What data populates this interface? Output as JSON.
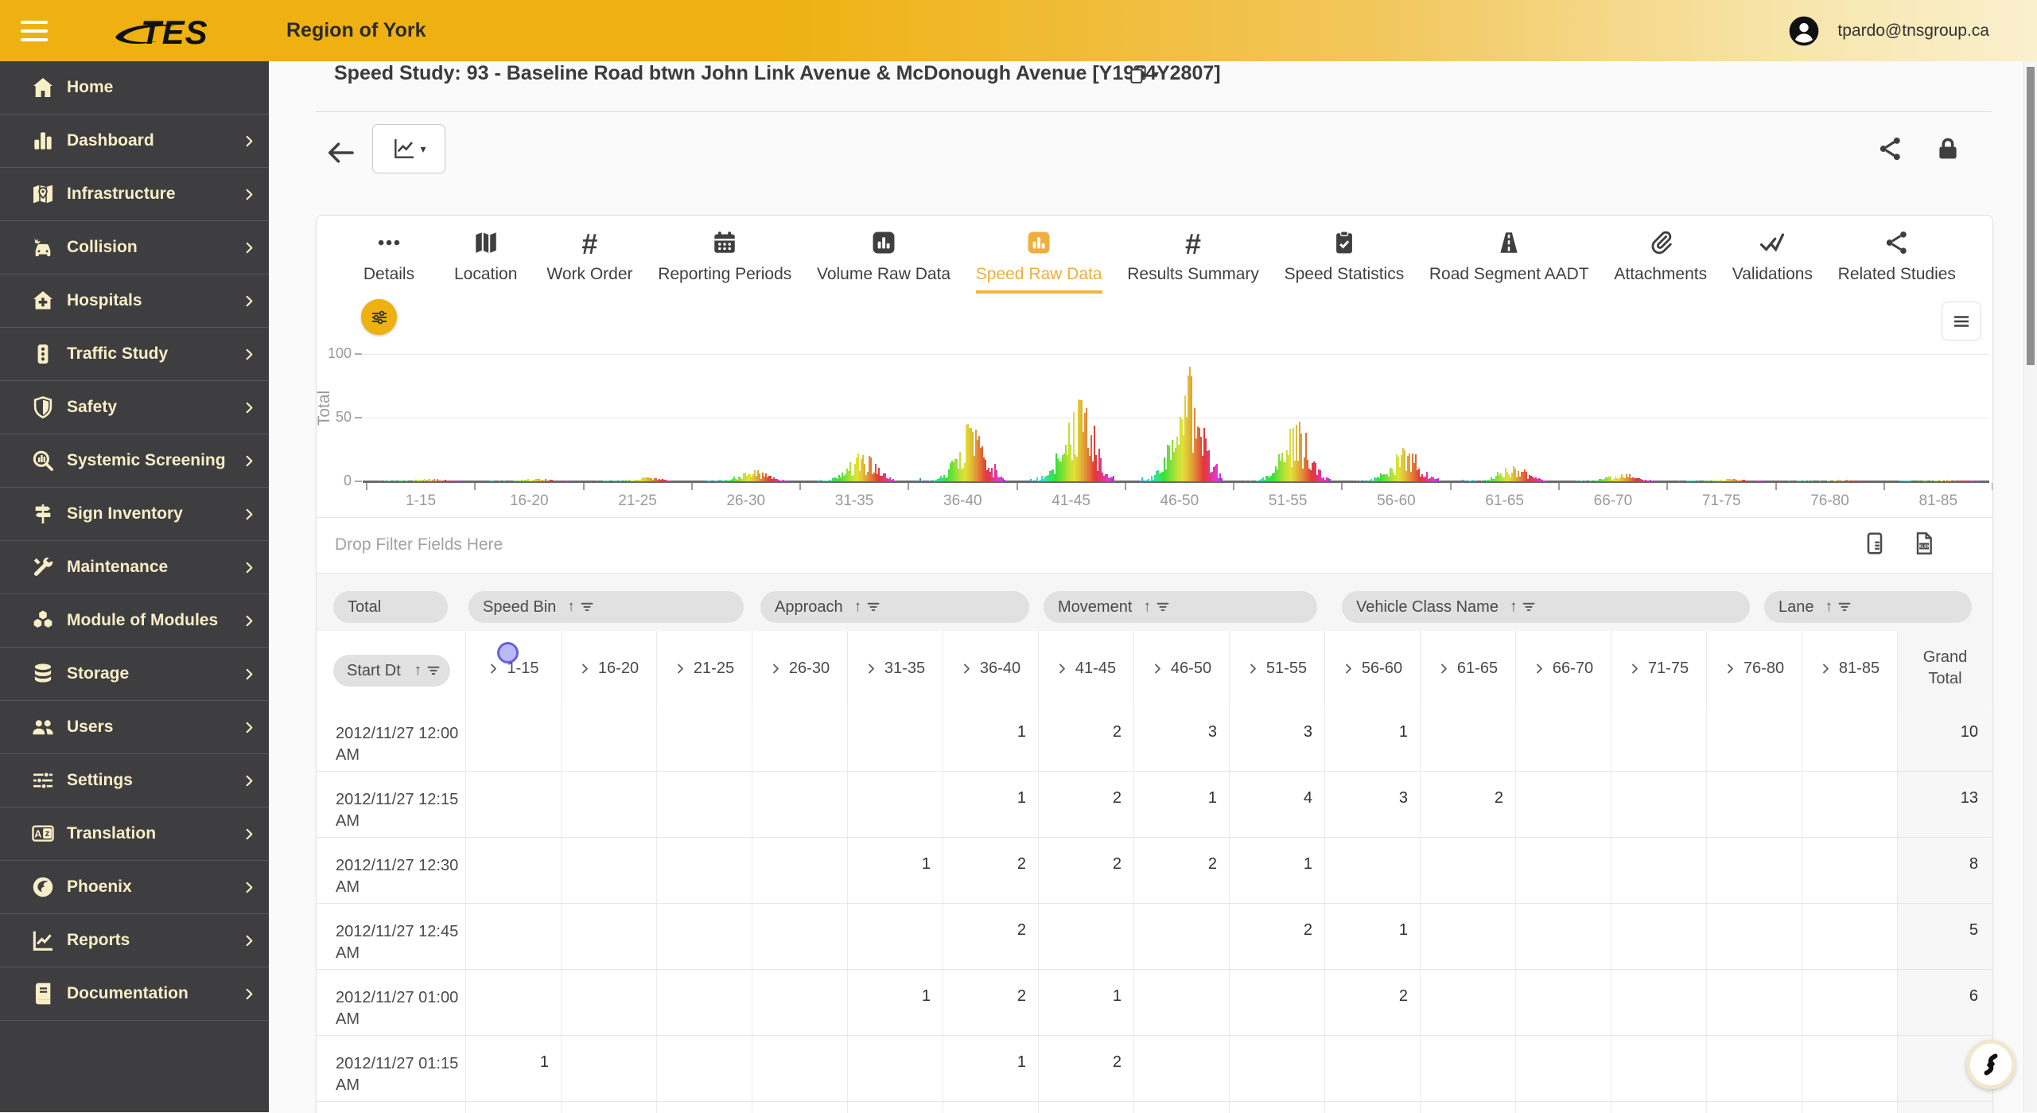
{
  "topbar": {
    "brand": "TES",
    "region_title": "Region of York",
    "user_email": "tpardo@tnsgroup.ca"
  },
  "page": {
    "title": "Speed Study: 93 - Baseline Road btwn John Link Avenue & McDonough Avenue [Y1964Y2807]"
  },
  "sidebar": {
    "items": [
      {
        "label": "Home",
        "icon": "home",
        "chevron": false
      },
      {
        "label": "Dashboard",
        "icon": "dashboard",
        "chevron": true
      },
      {
        "label": "Infrastructure",
        "icon": "infrastructure",
        "chevron": true
      },
      {
        "label": "Collision",
        "icon": "collision",
        "chevron": true
      },
      {
        "label": "Hospitals",
        "icon": "hospitals",
        "chevron": true
      },
      {
        "label": "Traffic Study",
        "icon": "traffic-study",
        "chevron": true
      },
      {
        "label": "Safety",
        "icon": "safety",
        "chevron": true
      },
      {
        "label": "Systemic Screening",
        "icon": "systemic-screening",
        "chevron": true
      },
      {
        "label": "Sign Inventory",
        "icon": "sign-inventory",
        "chevron": true
      },
      {
        "label": "Maintenance",
        "icon": "maintenance",
        "chevron": true
      },
      {
        "label": "Module of Modules",
        "icon": "module-of-modules",
        "chevron": true
      },
      {
        "label": "Storage",
        "icon": "storage",
        "chevron": true
      },
      {
        "label": "Users",
        "icon": "users",
        "chevron": true
      },
      {
        "label": "Settings",
        "icon": "settings",
        "chevron": true
      },
      {
        "label": "Translation",
        "icon": "translation",
        "chevron": true
      },
      {
        "label": "Phoenix",
        "icon": "phoenix",
        "chevron": true
      },
      {
        "label": "Reports",
        "icon": "reports",
        "chevron": true
      },
      {
        "label": "Documentation",
        "icon": "documentation",
        "chevron": true
      }
    ]
  },
  "tabs": [
    {
      "label": "Details",
      "icon": "details",
      "active": false
    },
    {
      "label": "Location",
      "icon": "location",
      "active": false
    },
    {
      "label": "Work Order",
      "icon": "hash",
      "active": false
    },
    {
      "label": "Reporting Periods",
      "icon": "calendar",
      "active": false
    },
    {
      "label": "Volume Raw Data",
      "icon": "chart-tile",
      "active": false
    },
    {
      "label": "Speed Raw Data",
      "icon": "chart-tile",
      "active": true
    },
    {
      "label": "Results Summary",
      "icon": "hash",
      "active": false
    },
    {
      "label": "Speed Statistics",
      "icon": "clipboard-check",
      "active": false
    },
    {
      "label": "Road Segment AADT",
      "icon": "road",
      "active": false
    },
    {
      "label": "Attachments",
      "icon": "paperclip",
      "active": false
    },
    {
      "label": "Validations",
      "icon": "double-check",
      "active": false
    },
    {
      "label": "Related Studies",
      "icon": "share-nodes",
      "active": false
    }
  ],
  "chart_data": {
    "type": "bar",
    "title": "",
    "xlabel": "",
    "ylabel": "Total",
    "ylim": [
      0,
      100
    ],
    "yticks": [
      0,
      50,
      100
    ],
    "grid": "horizontal",
    "legend": "none",
    "categories": [
      "1-15",
      "16-20",
      "21-25",
      "26-30",
      "31-35",
      "36-40",
      "41-45",
      "46-50",
      "51-55",
      "56-60",
      "61-65",
      "66-70",
      "71-75",
      "76-80",
      "81-85"
    ],
    "values": [
      2,
      2,
      3,
      9,
      21,
      43,
      65,
      85,
      45,
      25,
      12,
      6,
      2,
      1,
      1
    ],
    "values_note": "peak 15-minute total per speed bin; each bin drawn as a dense cluster of thin multicolour sub-bars (rainbow-ordered by time interval)"
  },
  "pivot": {
    "drop_hint": "Drop Filter Fields Here",
    "fields": [
      {
        "label": "Total",
        "sort": false
      },
      {
        "label": "Speed Bin",
        "sort": true
      },
      {
        "label": "Approach",
        "sort": true
      },
      {
        "label": "Movement",
        "sort": true
      },
      {
        "label": "Vehicle Class Name",
        "sort": true
      },
      {
        "label": "Lane",
        "sort": true
      }
    ],
    "row_field": {
      "label": "Start Dt",
      "sort": true
    },
    "columns": [
      "1-15",
      "16-20",
      "21-25",
      "26-30",
      "31-35",
      "36-40",
      "41-45",
      "46-50",
      "51-55",
      "56-60",
      "61-65",
      "66-70",
      "71-75",
      "76-80",
      "81-85"
    ],
    "grand_total_label": "Grand Total",
    "rows": [
      {
        "start_dt": "2012/11/27 12:00 AM",
        "values": [
          null,
          null,
          null,
          null,
          null,
          1,
          2,
          3,
          3,
          1,
          null,
          null,
          null,
          null,
          null
        ],
        "grand_total": 10
      },
      {
        "start_dt": "2012/11/27 12:15 AM",
        "values": [
          null,
          null,
          null,
          null,
          null,
          1,
          2,
          1,
          4,
          3,
          2,
          null,
          null,
          null,
          null
        ],
        "grand_total": 13
      },
      {
        "start_dt": "2012/11/27 12:30 AM",
        "values": [
          null,
          null,
          null,
          null,
          1,
          2,
          2,
          2,
          1,
          null,
          null,
          null,
          null,
          null,
          null
        ],
        "grand_total": 8
      },
      {
        "start_dt": "2012/11/27 12:45 AM",
        "values": [
          null,
          null,
          null,
          null,
          null,
          2,
          null,
          null,
          2,
          1,
          null,
          null,
          null,
          null,
          null
        ],
        "grand_total": 5
      },
      {
        "start_dt": "2012/11/27 01:00 AM",
        "values": [
          null,
          null,
          null,
          null,
          1,
          2,
          1,
          null,
          null,
          2,
          null,
          null,
          null,
          null,
          null
        ],
        "grand_total": 6
      },
      {
        "start_dt": "2012/11/27 01:15 AM",
        "values": [
          1,
          null,
          null,
          null,
          null,
          1,
          2,
          null,
          null,
          null,
          null,
          null,
          null,
          null,
          null
        ],
        "grand_total": 4
      }
    ]
  },
  "colors": {
    "topbar_yellow": "#EFB112",
    "sidebar_bg": "#3E3D3F",
    "sidebar_text": "#F8EEC7",
    "accent_gold": "#EFAE3D",
    "text_dark": "#3B3B3B",
    "muted_gray": "#9A9A9A",
    "pill_bg": "#E1E1E1",
    "cursor_highlight": "#6A63F3"
  }
}
